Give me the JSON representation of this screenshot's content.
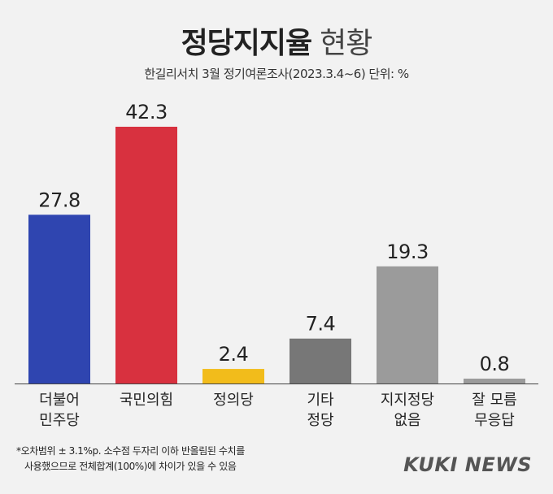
{
  "header": {
    "title": "정당지지율",
    "title_suffix": "현황",
    "subtitle": "한길리서치 3월 정기여론조사(2023.3.4~6) 단위: %"
  },
  "chart_data": {
    "type": "bar",
    "categories": [
      [
        "더불어",
        "민주당"
      ],
      [
        "국민의힘"
      ],
      [
        "정의당"
      ],
      [
        "기타",
        "정당"
      ],
      [
        "지지정당",
        "없음"
      ],
      [
        "잘 모름",
        "무응답"
      ]
    ],
    "values": [
      27.8,
      42.3,
      2.4,
      7.4,
      19.3,
      0.8
    ],
    "value_labels": [
      "27.8",
      "42.3",
      "2.4",
      "7.4",
      "19.3",
      "0.8"
    ],
    "colors": [
      "#2f45b0",
      "#d8313f",
      "#f2bc1b",
      "#777777",
      "#9b9b9b",
      "#9b9b9b"
    ],
    "ylim": [
      0,
      42.3
    ],
    "grid": false,
    "legend": "none"
  },
  "footnote": {
    "line1": "*오차범위 ± 3.1%p. 소수점 두자리 이하 반올림된 수치를",
    "line2": "사용했으므로 전체합계(100%)에 차이가 있을 수 있음"
  },
  "brand": "KUKI NEWS"
}
